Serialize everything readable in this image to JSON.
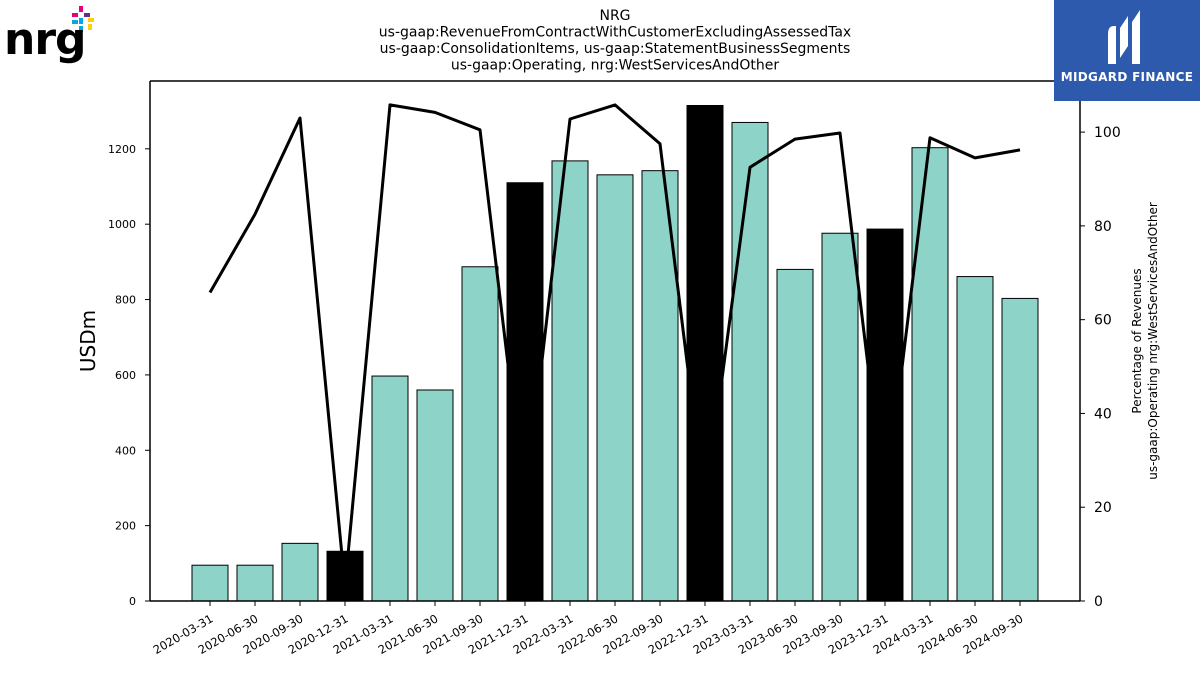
{
  "header": {
    "title_lines": [
      "NRG",
      "us-gaap:RevenueFromContractWithCustomerExcludingAssessedTax",
      "us-gaap:ConsolidationItems, us-gaap:StatementBusinessSegments",
      "us-gaap:Operating, nrg:WestServicesAndOther"
    ]
  },
  "logo": {
    "text": "nrg",
    "reg_mark": "®",
    "icon": "nrg-pinwheel-icon"
  },
  "brand": {
    "text": "MIDGARD FINANCE",
    "icon": "midgard-m-icon",
    "bg_color": "#2d5aad"
  },
  "chart_data": {
    "type": "bar",
    "categories": [
      "2020-03-31",
      "2020-06-30",
      "2020-09-30",
      "2020-12-31",
      "2021-03-31",
      "2021-06-30",
      "2021-09-30",
      "2021-12-31",
      "2022-03-31",
      "2022-06-30",
      "2022-09-30",
      "2022-12-31",
      "2023-03-31",
      "2023-06-30",
      "2023-09-30",
      "2023-12-31",
      "2024-03-31",
      "2024-06-30",
      "2024-09-30"
    ],
    "series": [
      {
        "kind": "bar",
        "axis": "left",
        "values": [
          95,
          95,
          153,
          132,
          597,
          560,
          887,
          1110,
          1168,
          1131,
          1142,
          1315,
          1270,
          880,
          976,
          987,
          1203,
          861,
          803
        ],
        "highlight": [
          false,
          false,
          false,
          true,
          false,
          false,
          false,
          true,
          false,
          false,
          false,
          true,
          false,
          false,
          false,
          true,
          false,
          false,
          false
        ]
      },
      {
        "kind": "line",
        "axis": "right",
        "values": [
          65.8,
          82.5,
          103.0,
          3.0,
          105.8,
          104.2,
          100.5,
          20.0,
          102.8,
          105.8,
          97.5,
          20.0,
          92.5,
          98.5,
          99.8,
          20.0,
          98.8,
          94.5,
          96.2
        ]
      }
    ],
    "xlabel": "",
    "ylabel": "USDm",
    "ylabel_right": [
      "Percentage of Revenues",
      "us-gaap:Operating nrg:WestServicesAndOther"
    ],
    "ylim": [
      0,
      1380
    ],
    "ylim_right": [
      0,
      110.9
    ],
    "yticks": [
      0,
      200,
      400,
      600,
      800,
      1000,
      1200
    ],
    "yticks_right": [
      0,
      20,
      40,
      60,
      80,
      100
    ],
    "grid": false,
    "colors": {
      "bar": "#8dd3c7",
      "highlight": "#000000",
      "line": "#000000"
    }
  }
}
